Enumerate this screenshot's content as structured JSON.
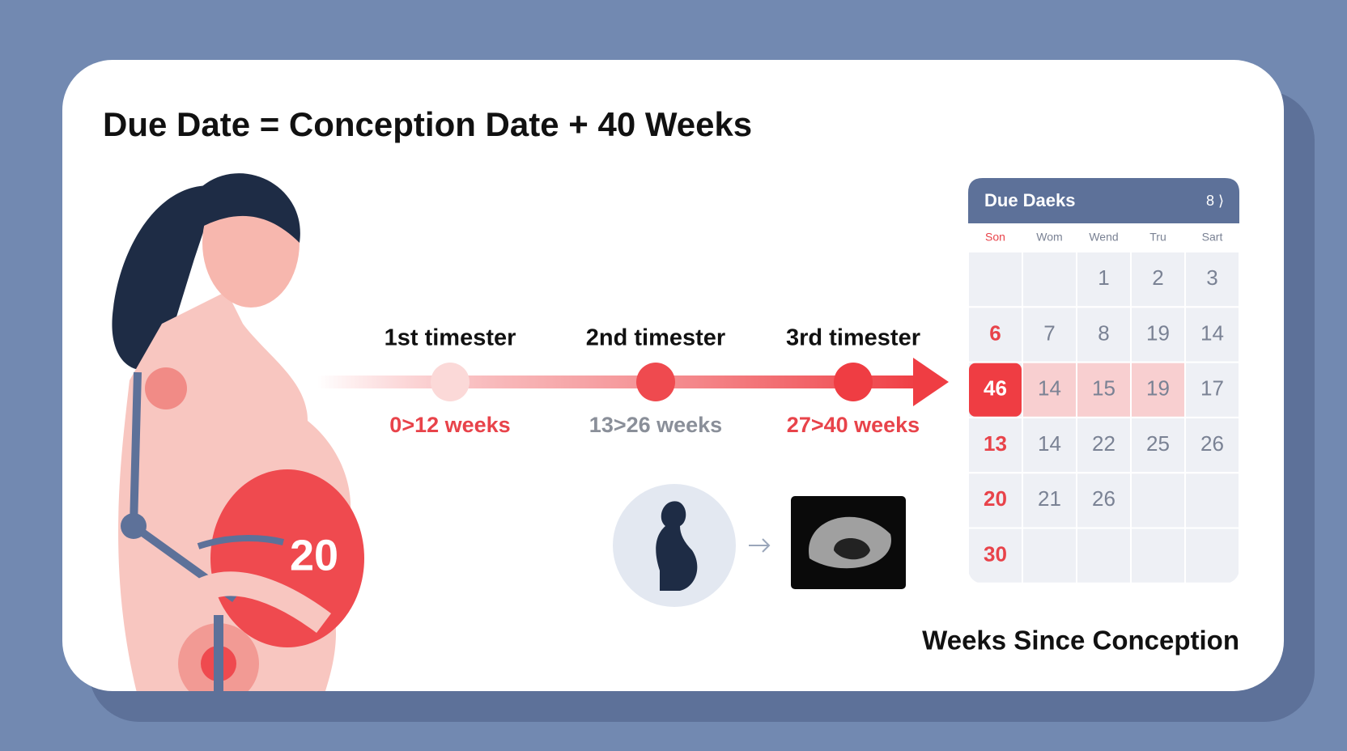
{
  "title": "Due Date = Conception Date + 40 Weeks",
  "illustration": {
    "belly_label": "20"
  },
  "timeline": {
    "stages": [
      {
        "label": "1st timester",
        "range": "0>12 weeks"
      },
      {
        "label": "2nd timester",
        "range": "13>26 weeks"
      },
      {
        "label": "3rd timester",
        "range": "27>40 weeks"
      }
    ]
  },
  "calendar": {
    "title": "Due Daeks",
    "nav": "8 ⟩",
    "weekdays": [
      "Son",
      "Wom",
      "Wend",
      "Tru",
      "Sart"
    ],
    "rows": [
      [
        null,
        null,
        "1",
        "2",
        "3"
      ],
      [
        "6",
        "7",
        "8",
        "19",
        "14"
      ],
      [
        "46",
        "14",
        "15",
        "19",
        "17"
      ],
      [
        "13",
        "14",
        "22",
        "25",
        "26"
      ],
      [
        "20",
        "21",
        "26",
        null,
        null
      ],
      [
        "30",
        null,
        null,
        null,
        null
      ]
    ]
  },
  "footer": "Weeks Since Conception"
}
